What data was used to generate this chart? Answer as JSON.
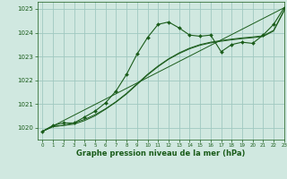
{
  "title": "Graphe pression niveau de la mer (hPa)",
  "background_color": "#d0e8e0",
  "plot_bg_color": "#d0e8e0",
  "grid_color": "#a0c8c0",
  "line_color": "#1a5c1a",
  "xlim": [
    -0.5,
    23
  ],
  "ylim": [
    1019.5,
    1025.3
  ],
  "yticks": [
    1020,
    1021,
    1022,
    1023,
    1024,
    1025
  ],
  "xticks": [
    0,
    1,
    2,
    3,
    4,
    5,
    6,
    7,
    8,
    9,
    10,
    11,
    12,
    13,
    14,
    15,
    16,
    17,
    18,
    19,
    20,
    21,
    22,
    23
  ],
  "series1_x": [
    0,
    1,
    2,
    3,
    4,
    5,
    6,
    7,
    8,
    9,
    10,
    11,
    12,
    13,
    14,
    15,
    16,
    17,
    18,
    19,
    20,
    21,
    22,
    23
  ],
  "series1_y": [
    1019.85,
    1020.1,
    1020.2,
    1020.2,
    1020.45,
    1020.7,
    1021.05,
    1021.55,
    1022.25,
    1023.1,
    1023.8,
    1024.35,
    1024.45,
    1024.2,
    1023.9,
    1023.85,
    1023.9,
    1023.2,
    1023.5,
    1023.6,
    1023.55,
    1023.9,
    1024.35,
    1025.05
  ],
  "series2_x": [
    0,
    1,
    2,
    3,
    4,
    5,
    6,
    7,
    8,
    9,
    10,
    11,
    12,
    13,
    14,
    15,
    16,
    17,
    18,
    19,
    20,
    21,
    22,
    23
  ],
  "series2_y": [
    1019.85,
    1020.05,
    1020.1,
    1020.2,
    1020.35,
    1020.55,
    1020.8,
    1021.1,
    1021.45,
    1021.85,
    1022.25,
    1022.6,
    1022.9,
    1023.15,
    1023.35,
    1023.5,
    1023.6,
    1023.67,
    1023.73,
    1023.78,
    1023.82,
    1023.87,
    1024.1,
    1024.95
  ],
  "series3_x": [
    0,
    1,
    2,
    3,
    4,
    5,
    6,
    7,
    8,
    9,
    10,
    11,
    12,
    13,
    14,
    15,
    16,
    17,
    18,
    19,
    20,
    21,
    22,
    23
  ],
  "series3_y": [
    1019.85,
    1020.05,
    1020.1,
    1020.15,
    1020.3,
    1020.5,
    1020.78,
    1021.08,
    1021.42,
    1021.82,
    1022.22,
    1022.57,
    1022.88,
    1023.12,
    1023.32,
    1023.47,
    1023.57,
    1023.64,
    1023.7,
    1023.75,
    1023.79,
    1023.84,
    1024.07,
    1024.92
  ],
  "series4_x": [
    0,
    23
  ],
  "series4_y": [
    1019.85,
    1025.05
  ]
}
